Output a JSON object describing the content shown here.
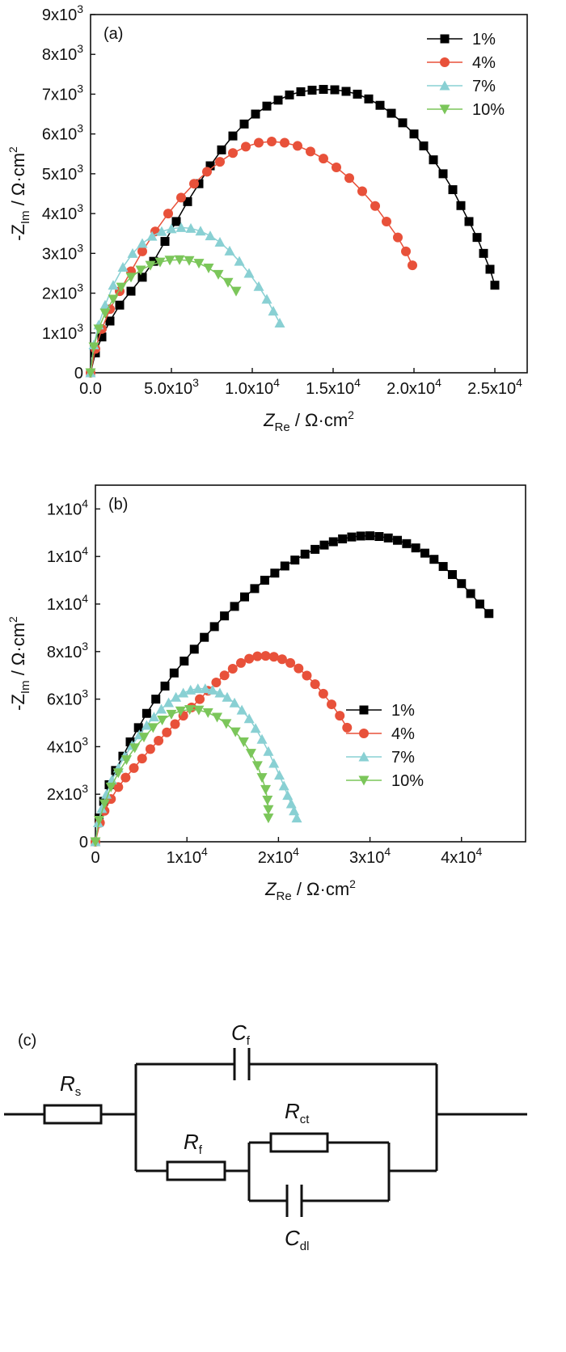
{
  "chart_data": [
    {
      "type": "scatter",
      "panel_label": "(a)",
      "xlabel": {
        "main": "Z",
        "sub": "Re",
        "unit": " / Ω·cm",
        "sup": "2"
      },
      "ylabel": {
        "main": "-Z",
        "sub": "Im",
        "unit": " / Ω·cm",
        "sup": "2"
      },
      "xlim": [
        0,
        27000
      ],
      "ylim": [
        0,
        9000
      ],
      "xticks": [
        {
          "v": 0,
          "label": "0.0"
        },
        {
          "v": 5000,
          "label": "5.0x10",
          "exp": "3"
        },
        {
          "v": 10000,
          "label": "1.0x10",
          "exp": "4"
        },
        {
          "v": 15000,
          "label": "1.5x10",
          "exp": "4"
        },
        {
          "v": 20000,
          "label": "2.0x10",
          "exp": "4"
        },
        {
          "v": 25000,
          "label": "2.5x10",
          "exp": "4"
        }
      ],
      "yticks": [
        {
          "v": 0,
          "label": "0"
        },
        {
          "v": 1000,
          "label": "1x10",
          "exp": "3"
        },
        {
          "v": 2000,
          "label": "2x10",
          "exp": "3"
        },
        {
          "v": 3000,
          "label": "3x10",
          "exp": "3"
        },
        {
          "v": 4000,
          "label": "4x10",
          "exp": "3"
        },
        {
          "v": 5000,
          "label": "5x10",
          "exp": "3"
        },
        {
          "v": 6000,
          "label": "6x10",
          "exp": "3"
        },
        {
          "v": 7000,
          "label": "7x10",
          "exp": "3"
        },
        {
          "v": 8000,
          "label": "8x10",
          "exp": "3"
        },
        {
          "v": 9000,
          "label": "9x10",
          "exp": "3"
        }
      ],
      "legend_position": "top-right",
      "series": [
        {
          "name": "1%",
          "color": "#000000",
          "marker": "square",
          "x": [
            0,
            300,
            700,
            1200,
            1800,
            2500,
            3200,
            3900,
            4600,
            5300,
            6000,
            6700,
            7400,
            8100,
            8800,
            9500,
            10200,
            10900,
            11600,
            12300,
            13000,
            13700,
            14400,
            15100,
            15800,
            16500,
            17200,
            17900,
            18600,
            19300,
            20000,
            20600,
            21200,
            21800,
            22400,
            22900,
            23400,
            23900,
            24300,
            24700,
            25000
          ],
          "y": [
            0,
            500,
            900,
            1300,
            1700,
            2050,
            2400,
            2800,
            3300,
            3800,
            4300,
            4750,
            5200,
            5600,
            5950,
            6250,
            6500,
            6700,
            6850,
            6980,
            7060,
            7100,
            7120,
            7110,
            7070,
            7000,
            6880,
            6720,
            6520,
            6280,
            6000,
            5700,
            5350,
            5000,
            4600,
            4200,
            3800,
            3400,
            3000,
            2600,
            2200
          ]
        },
        {
          "name": "4%",
          "color": "#E8513A",
          "marker": "circle",
          "x": [
            0,
            300,
            700,
            1200,
            1800,
            2500,
            3200,
            4000,
            4800,
            5600,
            6400,
            7200,
            8000,
            8800,
            9600,
            10400,
            11200,
            12000,
            12800,
            13600,
            14400,
            15200,
            16000,
            16800,
            17600,
            18300,
            19000,
            19500,
            19900
          ],
          "y": [
            0,
            600,
            1100,
            1600,
            2050,
            2550,
            3050,
            3550,
            4000,
            4400,
            4750,
            5050,
            5300,
            5520,
            5680,
            5780,
            5810,
            5780,
            5700,
            5560,
            5380,
            5160,
            4890,
            4560,
            4190,
            3800,
            3400,
            3050,
            2700
          ]
        },
        {
          "name": "7%",
          "color": "#89D0D3",
          "marker": "triangle-up",
          "x": [
            0,
            200,
            500,
            900,
            1400,
            2000,
            2600,
            3200,
            3800,
            4400,
            5000,
            5600,
            6200,
            6800,
            7400,
            8000,
            8600,
            9200,
            9800,
            10400,
            10900,
            11300,
            11700
          ],
          "y": [
            0,
            700,
            1200,
            1700,
            2200,
            2650,
            3000,
            3250,
            3430,
            3550,
            3620,
            3650,
            3630,
            3560,
            3440,
            3280,
            3060,
            2800,
            2500,
            2170,
            1850,
            1550,
            1250
          ]
        },
        {
          "name": "10%",
          "color": "#7BC65A",
          "marker": "triangle-down",
          "x": [
            0,
            200,
            500,
            900,
            1400,
            1900,
            2500,
            3100,
            3700,
            4300,
            4900,
            5500,
            6100,
            6700,
            7300,
            7900,
            8500,
            9000
          ],
          "y": [
            0,
            650,
            1100,
            1500,
            1850,
            2150,
            2400,
            2580,
            2700,
            2780,
            2830,
            2840,
            2820,
            2750,
            2630,
            2470,
            2270,
            2050
          ]
        }
      ]
    },
    {
      "type": "scatter",
      "panel_label": "(b)",
      "xlabel": {
        "main": "Z",
        "sub": "Re",
        "unit": " / Ω·cm",
        "sup": "2"
      },
      "ylabel": {
        "main": "-Z",
        "sub": "Im",
        "unit": " / Ω·cm",
        "sup": "2"
      },
      "xlim": [
        0,
        47000
      ],
      "ylim": [
        0,
        15000
      ],
      "xticks": [
        {
          "v": 0,
          "label": "0"
        },
        {
          "v": 10000,
          "label": "1x10",
          "exp": "4"
        },
        {
          "v": 20000,
          "label": "2x10",
          "exp": "4"
        },
        {
          "v": 30000,
          "label": "3x10",
          "exp": "4"
        },
        {
          "v": 40000,
          "label": "4x10",
          "exp": "4"
        }
      ],
      "yticks": [
        {
          "v": 0,
          "label": "0"
        },
        {
          "v": 2000,
          "label": "2x10",
          "exp": "3"
        },
        {
          "v": 4000,
          "label": "4x10",
          "exp": "3"
        },
        {
          "v": 6000,
          "label": "6x10",
          "exp": "3"
        },
        {
          "v": 8000,
          "label": "8x10",
          "exp": "3"
        },
        {
          "v": 10000,
          "label": "1x10",
          "exp": "4"
        },
        {
          "v": 12000,
          "label": "1x10",
          "exp": "4"
        },
        {
          "v": 14000,
          "label": "1x10",
          "exp": "4"
        }
      ],
      "legend_position": "center-right",
      "series": [
        {
          "name": "1%",
          "color": "#000000",
          "marker": "square",
          "x": [
            0,
            400,
            900,
            1500,
            2200,
            3000,
            3800,
            4700,
            5600,
            6600,
            7600,
            8600,
            9700,
            10800,
            11900,
            13000,
            14100,
            15200,
            16300,
            17400,
            18500,
            19600,
            20700,
            21800,
            22900,
            24000,
            25000,
            26000,
            27000,
            28000,
            29000,
            30000,
            31000,
            32000,
            33000,
            34000,
            35000,
            36000,
            37000,
            38000,
            39000,
            40000,
            41000,
            42000,
            43000
          ],
          "y": [
            0,
            1000,
            1700,
            2400,
            3000,
            3600,
            4200,
            4800,
            5400,
            6000,
            6550,
            7100,
            7600,
            8100,
            8600,
            9050,
            9500,
            9900,
            10300,
            10650,
            11000,
            11300,
            11600,
            11850,
            12100,
            12300,
            12480,
            12620,
            12740,
            12820,
            12860,
            12870,
            12840,
            12780,
            12680,
            12540,
            12360,
            12140,
            11880,
            11580,
            11240,
            10860,
            10440,
            10000,
            9600
          ]
        },
        {
          "name": "4%",
          "color": "#E8513A",
          "marker": "circle",
          "x": [
            0,
            500,
            1000,
            1700,
            2500,
            3300,
            4200,
            5100,
            6000,
            6900,
            7800,
            8700,
            9600,
            10500,
            11400,
            12300,
            13200,
            14100,
            15000,
            15900,
            16800,
            17700,
            18600,
            19500,
            20400,
            21300,
            22200,
            23100,
            24000,
            24900,
            25800,
            26700,
            27500
          ],
          "y": [
            0,
            800,
            1300,
            1800,
            2300,
            2700,
            3100,
            3500,
            3900,
            4250,
            4600,
            4950,
            5300,
            5650,
            6000,
            6350,
            6700,
            7000,
            7280,
            7520,
            7700,
            7800,
            7820,
            7780,
            7680,
            7520,
            7290,
            6990,
            6630,
            6230,
            5780,
            5300,
            4800
          ]
        },
        {
          "name": "7%",
          "color": "#89D0D3",
          "marker": "triangle-up",
          "x": [
            0,
            300,
            700,
            1200,
            1800,
            2500,
            3200,
            4000,
            4800,
            5600,
            6400,
            7200,
            8000,
            8800,
            9600,
            10400,
            11200,
            12000,
            12800,
            13600,
            14400,
            15200,
            16000,
            16800,
            17500,
            18200,
            18900,
            19500,
            20100,
            20600,
            21000,
            21400,
            21700,
            22000
          ],
          "y": [
            0,
            800,
            1400,
            2000,
            2600,
            3100,
            3600,
            4050,
            4500,
            4900,
            5250,
            5580,
            5850,
            6080,
            6260,
            6380,
            6440,
            6440,
            6380,
            6260,
            6080,
            5840,
            5540,
            5180,
            4770,
            4310,
            3800,
            3300,
            2800,
            2350,
            1950,
            1600,
            1300,
            1000
          ]
        },
        {
          "name": "10%",
          "color": "#7BC65A",
          "marker": "triangle-down",
          "x": [
            0,
            400,
            1000,
            1700,
            2500,
            3400,
            4300,
            5300,
            6300,
            7300,
            8300,
            9300,
            10300,
            11300,
            12300,
            13300,
            14300,
            15300,
            16200,
            17000,
            17700,
            18200,
            18600,
            18800,
            18900,
            18900
          ],
          "y": [
            0,
            900,
            1600,
            2300,
            2900,
            3450,
            3950,
            4400,
            4800,
            5120,
            5360,
            5500,
            5560,
            5540,
            5430,
            5240,
            4970,
            4620,
            4200,
            3720,
            3200,
            2700,
            2200,
            1750,
            1350,
            1000
          ]
        }
      ]
    }
  ],
  "circuit": {
    "panel_label": "(c)",
    "components": [
      {
        "id": "rs",
        "main": "R",
        "sub": "s"
      },
      {
        "id": "cf",
        "main": "C",
        "sub": "f"
      },
      {
        "id": "rct",
        "main": "R",
        "sub": "ct"
      },
      {
        "id": "rf",
        "main": "R",
        "sub": "f"
      },
      {
        "id": "cdl",
        "main": "C",
        "sub": "dl"
      }
    ]
  }
}
